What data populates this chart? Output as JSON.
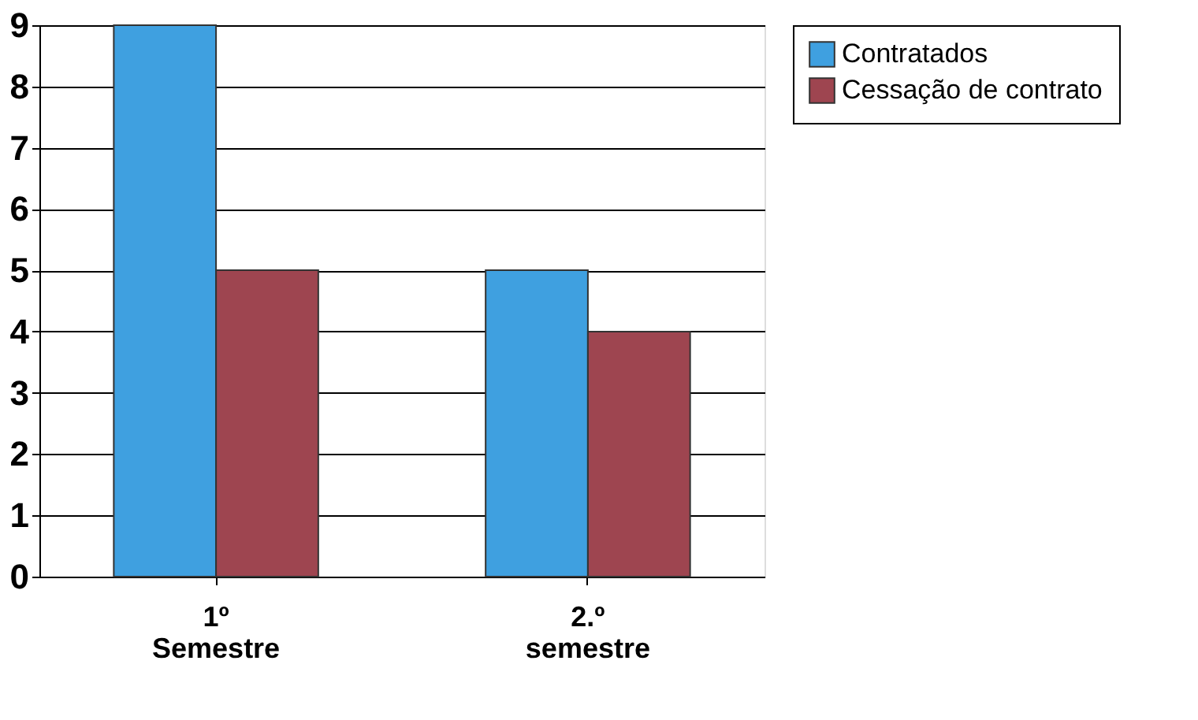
{
  "chart_data": {
    "type": "bar",
    "categories": [
      "1º Semestre",
      "2.º semestre"
    ],
    "series": [
      {
        "name": "Contratados",
        "color": "#3fa0e0",
        "values": [
          9,
          5
        ]
      },
      {
        "name": "Cessação de contrato",
        "color": "#9e4550",
        "values": [
          5,
          4
        ]
      }
    ],
    "ylim": [
      0,
      9
    ],
    "yticks": [
      0,
      1,
      2,
      3,
      4,
      5,
      6,
      7,
      8,
      9
    ],
    "grid": "y",
    "legend": "right"
  }
}
